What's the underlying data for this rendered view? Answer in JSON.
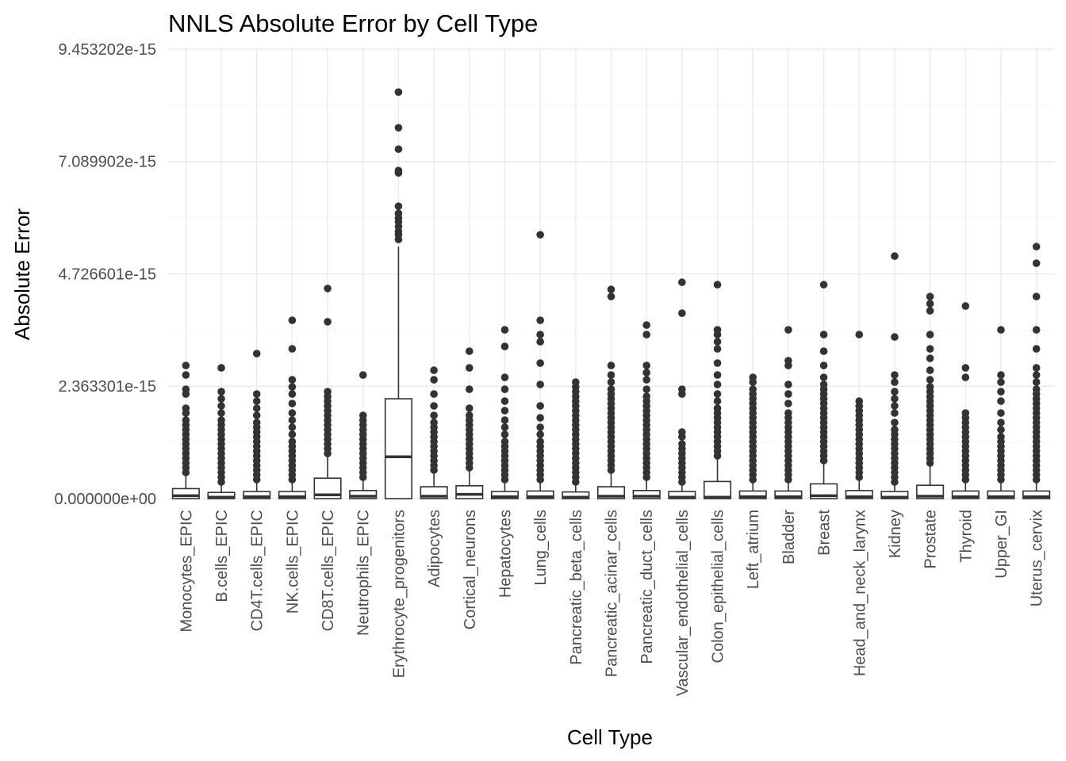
{
  "chart_data": {
    "type": "boxplot",
    "title": "NNLS Absolute Error by Cell Type",
    "xlabel": "Cell Type",
    "ylabel": "Absolute Error",
    "ylim": [
      0,
      9.453202e-15
    ],
    "y_ticks": [
      0,
      2.363301e-15,
      4.726601e-15,
      7.089902e-15,
      9.453202e-15
    ],
    "y_tick_labels": [
      "0.000000e+00",
      "2.363301e-15",
      "4.726601e-15",
      "7.089902e-15",
      "9.453202e-15"
    ],
    "grid": true,
    "legend": "none",
    "colors": {
      "box_line": "#333333",
      "box_fill": "#ffffff",
      "outlier": "#333333",
      "grid": "#ebebeb"
    },
    "categories": [
      "Monocytes_EPIC",
      "B.cells_EPIC",
      "CD4T.cells_EPIC",
      "NK.cells_EPIC",
      "CD8T.cells_EPIC",
      "Neutrophils_EPIC",
      "Erythrocyte_progenitors",
      "Adipocytes",
      "Cortical_neurons",
      "Hepatocytes",
      "Lung_cells",
      "Pancreatic_beta_cells",
      "Pancreatic_acinar_cells",
      "Pancreatic_duct_cells",
      "Vascular_endothelial_cells",
      "Colon_epithelial_cells",
      "Left_atrium",
      "Bladder",
      "Breast",
      "Head_and_neck_larynx",
      "Kidney",
      "Prostate",
      "Thyroid",
      "Upper_GI",
      "Uterus_cervix"
    ],
    "boxes": [
      {
        "q1": 0,
        "median": 6e-17,
        "q3": 2.1e-16,
        "whisker_low": 0,
        "whisker_high": 5e-16,
        "outliers": [
          5.5e-16,
          6.5e-16,
          7.5e-16,
          8.5e-16,
          9.5e-16,
          1.05e-15,
          1.15e-15,
          1.25e-15,
          1.35e-15,
          1.45e-15,
          1.55e-15,
          1.65e-15,
          1.8e-15,
          1.9e-15,
          2.2e-15,
          2.3e-15,
          2.6e-15,
          2.8e-15
        ]
      },
      {
        "q1": 0,
        "median": 3e-17,
        "q3": 1.3e-16,
        "whisker_low": 0,
        "whisker_high": 3e-16,
        "outliers": [
          3.5e-16,
          4.5e-16,
          5.5e-16,
          6.5e-16,
          7.5e-16,
          8.5e-16,
          9.5e-16,
          1.05e-15,
          1.15e-15,
          1.25e-15,
          1.35e-15,
          1.45e-15,
          1.55e-15,
          1.65e-15,
          1.8e-15,
          1.95e-15,
          2.1e-15,
          2.25e-15,
          2.75e-15
        ]
      },
      {
        "q1": 0,
        "median": 4e-17,
        "q3": 1.5e-16,
        "whisker_low": 0,
        "whisker_high": 3.5e-16,
        "outliers": [
          4e-16,
          5e-16,
          6e-16,
          7e-16,
          8e-16,
          9e-16,
          1e-15,
          1.1e-15,
          1.2e-15,
          1.3e-15,
          1.4e-15,
          1.5e-15,
          1.6e-15,
          1.75e-15,
          1.9e-15,
          2.05e-15,
          2.2e-15,
          3.05e-15
        ]
      },
      {
        "q1": 0,
        "median": 4e-17,
        "q3": 1.5e-16,
        "whisker_low": 0,
        "whisker_high": 3.5e-16,
        "outliers": [
          4e-16,
          5e-16,
          6e-16,
          7e-16,
          8e-16,
          9e-16,
          1e-15,
          1.1e-15,
          1.2e-15,
          1.35e-15,
          1.5e-15,
          1.65e-15,
          1.8e-15,
          2e-15,
          2.2e-15,
          2.35e-15,
          2.5e-15,
          3.15e-15,
          3.75e-15
        ]
      },
      {
        "q1": 0,
        "median": 8e-17,
        "q3": 4.3e-16,
        "whisker_low": 0,
        "whisker_high": 9e-16,
        "outliers": [
          9.5e-16,
          1.05e-15,
          1.15e-15,
          1.25e-15,
          1.35e-15,
          1.45e-15,
          1.55e-15,
          1.65e-15,
          1.75e-15,
          1.85e-15,
          1.95e-15,
          2.05e-15,
          2.15e-15,
          2.25e-15,
          3.72e-15,
          4.42e-15
        ]
      },
      {
        "q1": 0,
        "median": 5e-17,
        "q3": 1.7e-16,
        "whisker_low": 0,
        "whisker_high": 4e-16,
        "outliers": [
          4.5e-16,
          5.5e-16,
          6.5e-16,
          7.5e-16,
          8.5e-16,
          9.5e-16,
          1.05e-15,
          1.15e-15,
          1.25e-15,
          1.35e-15,
          1.45e-15,
          1.55e-15,
          1.65e-15,
          1.75e-15,
          2.6e-15
        ]
      },
      {
        "q1": 0,
        "median": 8.8e-16,
        "q3": 2.1e-15,
        "whisker_low": 0,
        "whisker_high": 5.3e-15,
        "outliers": [
          5.45e-15,
          5.55e-15,
          5.62e-15,
          5.72e-15,
          5.82e-15,
          5.9e-15,
          6e-15,
          6.15e-15,
          6.85e-15,
          6.9e-15,
          7.35e-15,
          7.8e-15,
          8.55e-15
        ]
      },
      {
        "q1": 0,
        "median": 5e-17,
        "q3": 2.5e-16,
        "whisker_low": 0,
        "whisker_high": 5.5e-16,
        "outliers": [
          6e-16,
          7e-16,
          8e-16,
          9e-16,
          1e-15,
          1.1e-15,
          1.2e-15,
          1.3e-15,
          1.4e-15,
          1.5e-15,
          1.6e-15,
          1.75e-15,
          1.95e-15,
          2.2e-15,
          2.5e-15,
          2.7e-15
        ]
      },
      {
        "q1": 0,
        "median": 9e-17,
        "q3": 2.7e-16,
        "whisker_low": 0,
        "whisker_high": 6e-16,
        "outliers": [
          6.5e-16,
          7.5e-16,
          8.5e-16,
          9.5e-16,
          1.05e-15,
          1.15e-15,
          1.25e-15,
          1.35e-15,
          1.45e-15,
          1.55e-15,
          1.65e-15,
          1.75e-15,
          1.9e-15,
          2.3e-15,
          2.75e-15,
          3.1e-15
        ]
      },
      {
        "q1": 0,
        "median": 4e-17,
        "q3": 1.5e-16,
        "whisker_low": 0,
        "whisker_high": 3.5e-16,
        "outliers": [
          4e-16,
          5e-16,
          6e-16,
          7e-16,
          8e-16,
          9e-16,
          1e-15,
          1.1e-15,
          1.2e-15,
          1.35e-15,
          1.5e-15,
          1.65e-15,
          1.85e-15,
          2.05e-15,
          2.3e-15,
          2.55e-15,
          3.2e-15,
          3.55e-15
        ]
      },
      {
        "q1": 0,
        "median": 4e-17,
        "q3": 1.6e-16,
        "whisker_low": 0,
        "whisker_high": 3.5e-16,
        "outliers": [
          4e-16,
          5e-16,
          6e-16,
          7e-16,
          8e-16,
          9e-16,
          1e-15,
          1.1e-15,
          1.2e-15,
          1.35e-15,
          1.5e-15,
          1.7e-15,
          1.95e-15,
          2.4e-15,
          2.85e-15,
          3.3e-15,
          3.45e-15,
          3.75e-15,
          5.55e-15
        ]
      },
      {
        "q1": 0,
        "median": 3e-17,
        "q3": 1.4e-16,
        "whisker_low": 0,
        "whisker_high": 3e-16,
        "outliers": [
          3.5e-16,
          4.5e-16,
          5.5e-16,
          6.5e-16,
          7.5e-16,
          8.5e-16,
          9.5e-16,
          1.05e-15,
          1.15e-15,
          1.25e-15,
          1.35e-15,
          1.45e-15,
          1.55e-15,
          1.65e-15,
          1.75e-15,
          1.85e-15,
          1.95e-15,
          2.05e-15,
          2.15e-15,
          2.25e-15,
          2.35e-15,
          2.45e-15
        ]
      },
      {
        "q1": 0,
        "median": 5e-17,
        "q3": 2.5e-16,
        "whisker_low": 0,
        "whisker_high": 5.5e-16,
        "outliers": [
          6e-16,
          7e-16,
          8e-16,
          9e-16,
          1e-15,
          1.1e-15,
          1.2e-15,
          1.3e-15,
          1.4e-15,
          1.5e-15,
          1.6e-15,
          1.7e-15,
          1.8e-15,
          1.9e-15,
          2e-15,
          2.1e-15,
          2.2e-15,
          2.3e-15,
          2.45e-15,
          2.6e-15,
          2.8e-15,
          4.25e-15,
          4.4e-15
        ]
      },
      {
        "q1": 0,
        "median": 5e-17,
        "q3": 1.7e-16,
        "whisker_low": 0,
        "whisker_high": 4e-16,
        "outliers": [
          4.5e-16,
          5.5e-16,
          6.5e-16,
          7.5e-16,
          8.5e-16,
          9.5e-16,
          1.05e-15,
          1.15e-15,
          1.25e-15,
          1.35e-15,
          1.45e-15,
          1.55e-15,
          1.65e-15,
          1.75e-15,
          1.85e-15,
          1.95e-15,
          2.05e-15,
          2.15e-15,
          2.3e-15,
          2.5e-15,
          2.65e-15,
          2.8e-15,
          3.45e-15,
          3.65e-15
        ]
      },
      {
        "q1": 0,
        "median": 3e-17,
        "q3": 1.5e-16,
        "whisker_low": 0,
        "whisker_high": 3e-16,
        "outliers": [
          3.5e-16,
          4.5e-16,
          5.5e-16,
          6.5e-16,
          7.5e-16,
          8.5e-16,
          9.5e-16,
          1.05e-15,
          1.15e-15,
          1.3e-15,
          1.4e-15,
          2.2e-15,
          2.3e-15,
          3.9e-15,
          4.55e-15
        ]
      },
      {
        "q1": 0,
        "median": 3e-17,
        "q3": 3.6e-16,
        "whisker_low": 0,
        "whisker_high": 8.5e-16,
        "outliers": [
          9e-16,
          1e-15,
          1.1e-15,
          1.2e-15,
          1.3e-15,
          1.4e-15,
          1.5e-15,
          1.6e-15,
          1.7e-15,
          1.8e-15,
          1.9e-15,
          2.05e-15,
          2.2e-15,
          2.4e-15,
          2.6e-15,
          2.85e-15,
          3.15e-15,
          3.3e-15,
          3.45e-15,
          3.55e-15,
          4.5e-15
        ]
      },
      {
        "q1": 0,
        "median": 4e-17,
        "q3": 1.6e-16,
        "whisker_low": 0,
        "whisker_high": 3.5e-16,
        "outliers": [
          4e-16,
          5e-16,
          6e-16,
          7e-16,
          8e-16,
          9e-16,
          1e-15,
          1.1e-15,
          1.2e-15,
          1.3e-15,
          1.4e-15,
          1.5e-15,
          1.6e-15,
          1.7e-15,
          1.8e-15,
          1.9e-15,
          2e-15,
          2.1e-15,
          2.2e-15,
          2.3e-15,
          2.45e-15,
          2.55e-15
        ]
      },
      {
        "q1": 0,
        "median": 4e-17,
        "q3": 1.6e-16,
        "whisker_low": 0,
        "whisker_high": 3.5e-16,
        "outliers": [
          4e-16,
          5e-16,
          6e-16,
          7e-16,
          8e-16,
          9e-16,
          1e-15,
          1.1e-15,
          1.2e-15,
          1.3e-15,
          1.4e-15,
          1.5e-15,
          1.6e-15,
          1.7e-15,
          1.8e-15,
          2e-15,
          2.2e-15,
          2.4e-15,
          2.8e-15,
          2.9e-15,
          3.55e-15
        ]
      },
      {
        "q1": 0,
        "median": 6e-17,
        "q3": 3.1e-16,
        "whisker_low": 0,
        "whisker_high": 7.5e-16,
        "outliers": [
          8e-16,
          9e-16,
          1e-15,
          1.1e-15,
          1.2e-15,
          1.3e-15,
          1.4e-15,
          1.5e-15,
          1.6e-15,
          1.7e-15,
          1.8e-15,
          1.9e-15,
          2e-15,
          2.1e-15,
          2.2e-15,
          2.3e-15,
          2.4e-15,
          2.55e-15,
          2.8e-15,
          3.1e-15,
          3.45e-15,
          4.5e-15
        ]
      },
      {
        "q1": 0,
        "median": 4e-17,
        "q3": 1.7e-16,
        "whisker_low": 0,
        "whisker_high": 4e-16,
        "outliers": [
          4.5e-16,
          5.5e-16,
          6.5e-16,
          7.5e-16,
          8.5e-16,
          9.5e-16,
          1.05e-15,
          1.15e-15,
          1.25e-15,
          1.35e-15,
          1.45e-15,
          1.55e-15,
          1.65e-15,
          1.75e-15,
          1.85e-15,
          1.95e-15,
          2.05e-15,
          3.45e-15
        ]
      },
      {
        "q1": 0,
        "median": 3e-17,
        "q3": 1.5e-16,
        "whisker_low": 0,
        "whisker_high": 3e-16,
        "outliers": [
          3.5e-16,
          4.5e-16,
          5.5e-16,
          6.5e-16,
          7.5e-16,
          8.5e-16,
          9.5e-16,
          1.05e-15,
          1.15e-15,
          1.25e-15,
          1.35e-15,
          1.45e-15,
          1.6e-15,
          1.8e-15,
          1.95e-15,
          2.1e-15,
          2.25e-15,
          2.45e-15,
          2.6e-15,
          3.4e-15,
          5.1e-15
        ]
      },
      {
        "q1": 0,
        "median": 5e-17,
        "q3": 2.8e-16,
        "whisker_low": 0,
        "whisker_high": 7e-16,
        "outliers": [
          7.5e-16,
          8.5e-16,
          9.5e-16,
          1.05e-15,
          1.15e-15,
          1.25e-15,
          1.35e-15,
          1.45e-15,
          1.55e-15,
          1.65e-15,
          1.75e-15,
          1.85e-15,
          1.95e-15,
          2.05e-15,
          2.15e-15,
          2.25e-15,
          2.35e-15,
          2.5e-15,
          2.7e-15,
          2.95e-15,
          3.15e-15,
          3.45e-15,
          3.95e-15,
          4.1e-15,
          4.25e-15
        ]
      },
      {
        "q1": 0,
        "median": 4e-17,
        "q3": 1.6e-16,
        "whisker_low": 0,
        "whisker_high": 3.5e-16,
        "outliers": [
          4e-16,
          5e-16,
          6e-16,
          7e-16,
          8e-16,
          9e-16,
          1e-15,
          1.1e-15,
          1.2e-15,
          1.3e-15,
          1.4e-15,
          1.5e-15,
          1.6e-15,
          1.7e-15,
          1.8e-15,
          2.55e-15,
          2.75e-15,
          4.05e-15
        ]
      },
      {
        "q1": 0,
        "median": 4e-17,
        "q3": 1.6e-16,
        "whisker_low": 0,
        "whisker_high": 3.5e-16,
        "outliers": [
          4e-16,
          5e-16,
          6e-16,
          7e-16,
          8e-16,
          9e-16,
          1e-15,
          1.1e-15,
          1.2e-15,
          1.3e-15,
          1.45e-15,
          1.6e-15,
          1.8e-15,
          2.05e-15,
          2.25e-15,
          2.45e-15,
          2.6e-15,
          3.55e-15
        ]
      },
      {
        "q1": 0,
        "median": 4e-17,
        "q3": 1.6e-16,
        "whisker_low": 0,
        "whisker_high": 3.5e-16,
        "outliers": [
          4e-16,
          5e-16,
          6e-16,
          7e-16,
          8e-16,
          9e-16,
          1e-15,
          1.1e-15,
          1.2e-15,
          1.3e-15,
          1.4e-15,
          1.5e-15,
          1.6e-15,
          1.7e-15,
          1.8e-15,
          1.9e-15,
          2e-15,
          2.1e-15,
          2.2e-15,
          2.3e-15,
          2.45e-15,
          2.6e-15,
          2.75e-15,
          3.15e-15,
          3.55e-15,
          4.25e-15,
          4.95e-15,
          5.3e-15
        ]
      }
    ]
  }
}
